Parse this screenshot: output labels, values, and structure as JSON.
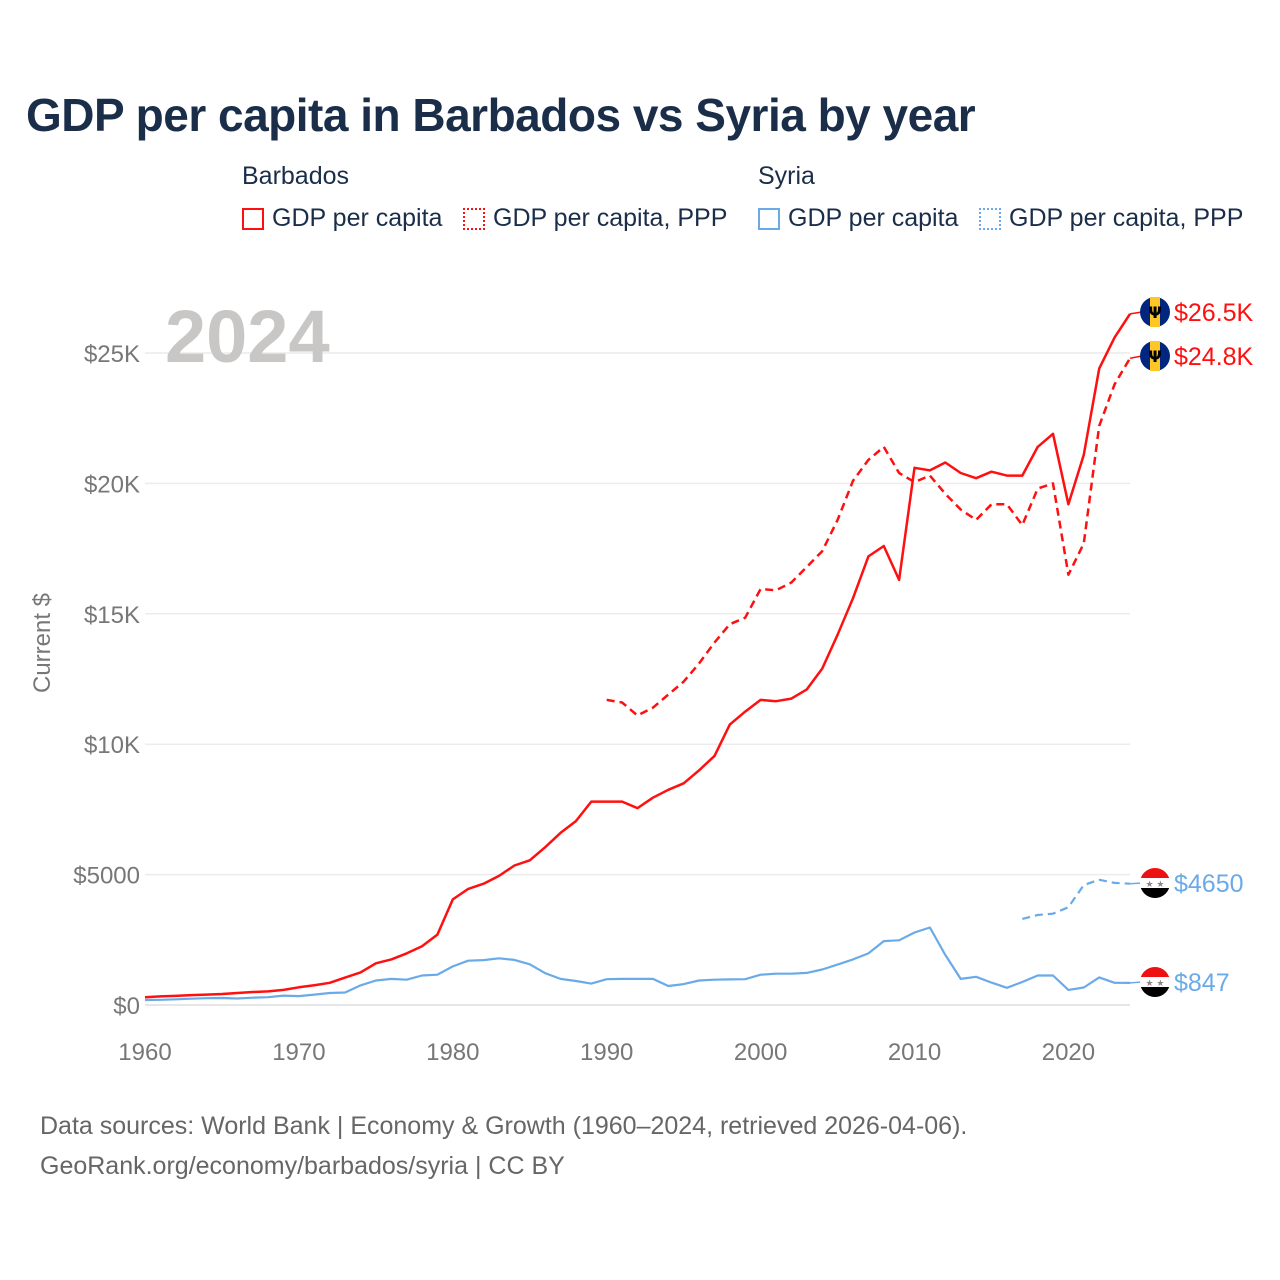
{
  "title": "GDP per capita in Barbados vs Syria by year",
  "legend": {
    "groups": [
      {
        "name": "Barbados",
        "color": "#ff1010",
        "items": [
          {
            "label": "GDP per capita",
            "style": "solid"
          },
          {
            "label": "GDP per capita, PPP",
            "style": "dotted"
          }
        ]
      },
      {
        "name": "Syria",
        "color": "#6aaae8",
        "items": [
          {
            "label": "GDP per capita",
            "style": "solid"
          },
          {
            "label": "GDP per capita, PPP",
            "style": "dotted"
          }
        ]
      }
    ]
  },
  "footer": {
    "line1": "Data sources: World Bank | Economy & Growth (1960–2024, retrieved 2026-04-06).",
    "line2": "GeoRank.org/economy/barbados/syria | CC BY"
  },
  "chart_data": {
    "type": "line",
    "title": "GDP per capita in Barbados vs Syria by year",
    "year_label": "2024",
    "xlabel": "",
    "ylabel": "Current $",
    "xlim": [
      1960,
      2024
    ],
    "ylim": [
      0,
      27000
    ],
    "x_ticks": [
      1960,
      1970,
      1980,
      1990,
      2000,
      2010,
      2020
    ],
    "x_tick_labels": [
      "1960",
      "1970",
      "1980",
      "1990",
      "2000",
      "2010",
      "2020"
    ],
    "y_ticks": [
      0,
      5000,
      10000,
      15000,
      20000,
      25000
    ],
    "y_tick_labels": [
      "$0",
      "$5000",
      "$10K",
      "$15K",
      "$20K",
      "$25K"
    ],
    "grid": true,
    "series": [
      {
        "name": "Barbados GDP per capita",
        "color": "#ff1010",
        "dash": false,
        "end_label": "$26.5K",
        "flag": "barbados",
        "x_start": 1960,
        "values": [
          300,
          330,
          350,
          380,
          400,
          420,
          460,
          500,
          520,
          580,
          680,
          760,
          850,
          1050,
          1250,
          1600,
          1750,
          1980,
          2250,
          2700,
          4050,
          4450,
          4650,
          4950,
          5350,
          5550,
          6050,
          6600,
          7050,
          7800,
          7800,
          7800,
          7550,
          7950,
          8250,
          8500,
          9000,
          9550,
          10750,
          11250,
          11700,
          11650,
          11750,
          12100,
          12900,
          14200,
          15600,
          17200,
          17600,
          16300,
          20600,
          20500,
          20800,
          20400,
          20200,
          20450,
          20300,
          20300,
          21400,
          21900,
          19200,
          21100,
          24400,
          25600,
          26500
        ]
      },
      {
        "name": "Barbados GDP per capita, PPP",
        "color": "#ff1010",
        "dash": true,
        "end_label": "$24.8K",
        "flag": "barbados",
        "x_start": 1990,
        "values": [
          11700,
          11600,
          11100,
          11400,
          11900,
          12400,
          13100,
          13900,
          14600,
          14850,
          15950,
          15900,
          16200,
          16800,
          17400,
          18600,
          20100,
          20900,
          21400,
          20400,
          20050,
          20300,
          19600,
          19000,
          18600,
          19200,
          19200,
          18400,
          19800,
          20000,
          16500,
          17700,
          22200,
          23800,
          24800
        ]
      },
      {
        "name": "Syria GDP per capita, PPP",
        "color": "#6aaae8",
        "dash": true,
        "end_label": "$4650",
        "flag": "syria",
        "x_start": 2017,
        "values": [
          3300,
          3450,
          3500,
          3750,
          4600,
          4800,
          4680,
          4650
        ]
      },
      {
        "name": "Syria GDP per capita",
        "color": "#6aaae8",
        "dash": false,
        "end_label": "$847",
        "flag": "syria",
        "x_start": 1960,
        "values": [
          190,
          200,
          220,
          240,
          260,
          270,
          250,
          280,
          300,
          360,
          340,
          400,
          460,
          480,
          750,
          940,
          1000,
          970,
          1130,
          1160,
          1480,
          1700,
          1720,
          1790,
          1730,
          1560,
          1220,
          1000,
          920,
          820,
          990,
          1000,
          1000,
          1000,
          730,
          800,
          940,
          970,
          980,
          990,
          1160,
          1200,
          1200,
          1230,
          1360,
          1550,
          1750,
          1980,
          2450,
          2480,
          2780,
          2970,
          1920,
          1000,
          1080,
          860,
          660,
          880,
          1130,
          1130,
          580,
          670,
          1060,
          850,
          847
        ]
      }
    ]
  }
}
